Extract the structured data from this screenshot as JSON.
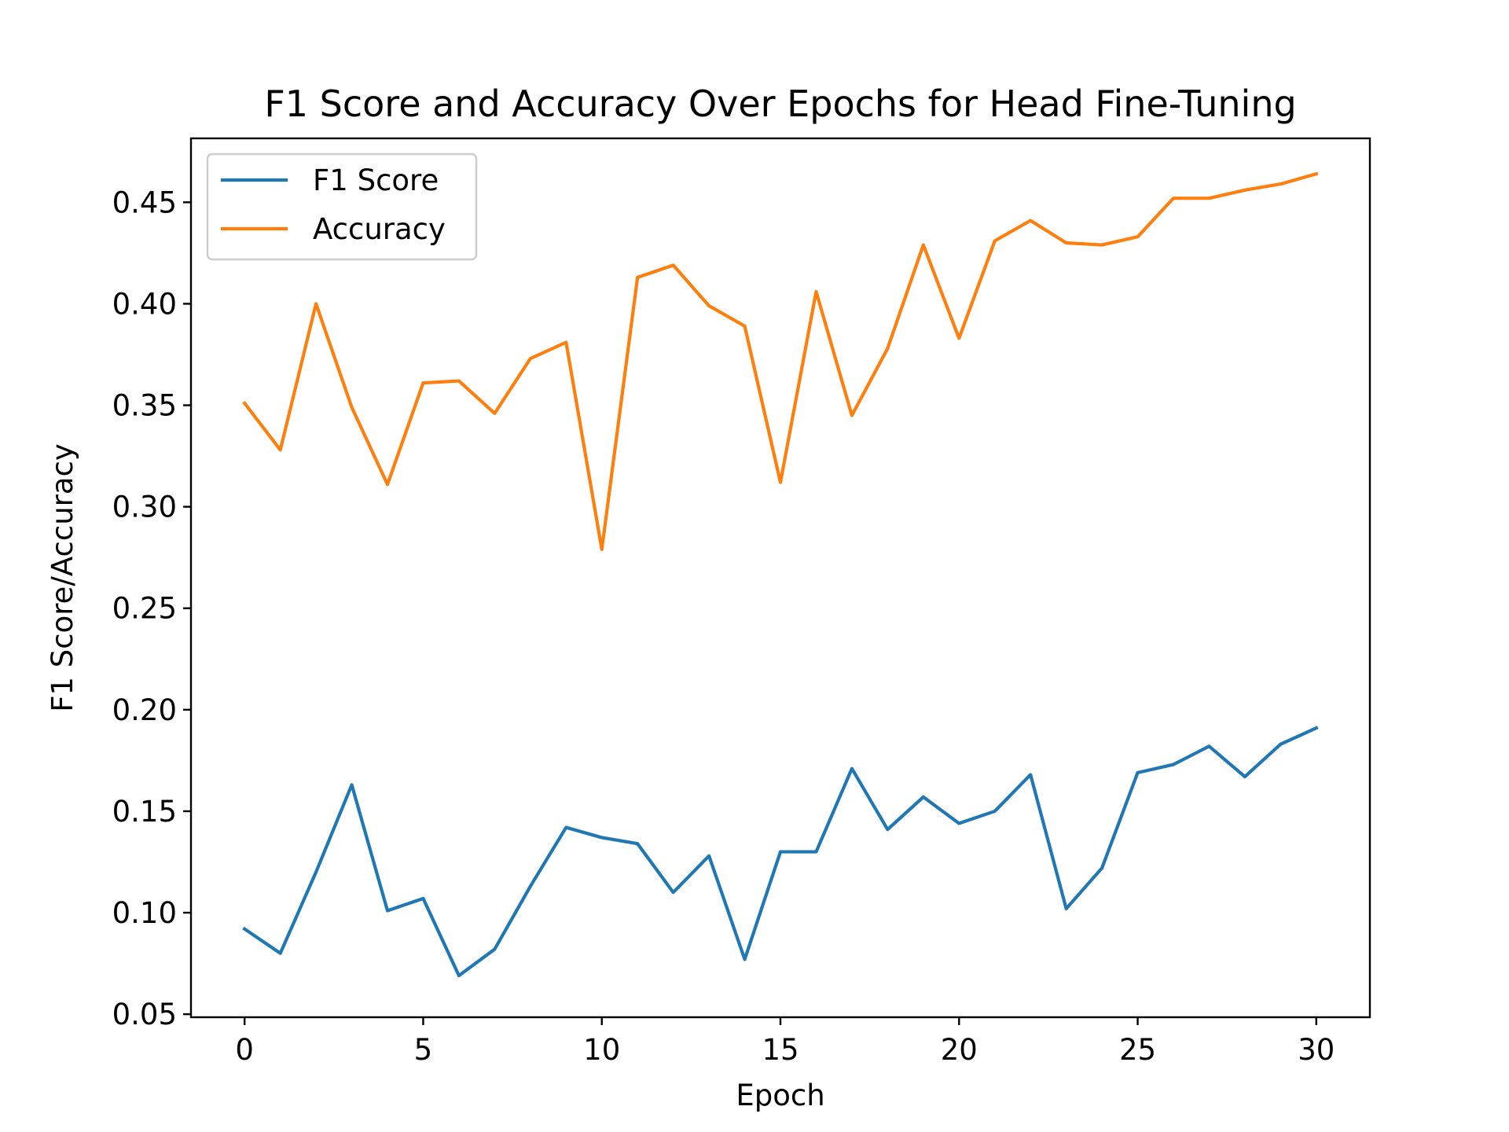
{
  "chart_data": {
    "type": "line",
    "title": "F1 Score and Accuracy Over Epochs for Head Fine-Tuning",
    "xlabel": "Epoch",
    "ylabel": "F1 Score/Accuracy",
    "xlim": [
      -1.5,
      31.5
    ],
    "ylim": [
      0.0485,
      0.4815
    ],
    "xticks": [
      0,
      5,
      10,
      15,
      20,
      25,
      30
    ],
    "yticks": [
      0.05,
      0.1,
      0.15,
      0.2,
      0.25,
      0.3,
      0.35,
      0.4,
      0.45
    ],
    "grid": false,
    "legend": "upper left",
    "x": [
      0,
      1,
      2,
      3,
      4,
      5,
      6,
      7,
      8,
      9,
      10,
      11,
      12,
      13,
      14,
      15,
      16,
      17,
      18,
      19,
      20,
      21,
      22,
      23,
      24,
      25,
      26,
      27,
      28,
      29,
      30
    ],
    "series": [
      {
        "name": "F1 Score",
        "color": "#1f77b4",
        "values": [
          0.092,
          0.08,
          0.12,
          0.163,
          0.101,
          0.107,
          0.069,
          0.082,
          0.113,
          0.142,
          0.137,
          0.134,
          0.11,
          0.128,
          0.077,
          0.13,
          0.13,
          0.171,
          0.141,
          0.157,
          0.144,
          0.15,
          0.168,
          0.102,
          0.122,
          0.169,
          0.173,
          0.182,
          0.167,
          0.183,
          0.191
        ]
      },
      {
        "name": "Accuracy",
        "color": "#ff7f0e",
        "values": [
          0.351,
          0.328,
          0.4,
          0.349,
          0.311,
          0.361,
          0.362,
          0.346,
          0.373,
          0.381,
          0.279,
          0.413,
          0.419,
          0.399,
          0.389,
          0.312,
          0.406,
          0.345,
          0.378,
          0.429,
          0.383,
          0.431,
          0.441,
          0.43,
          0.429,
          0.433,
          0.452,
          0.452,
          0.456,
          0.459,
          0.464
        ]
      }
    ]
  }
}
